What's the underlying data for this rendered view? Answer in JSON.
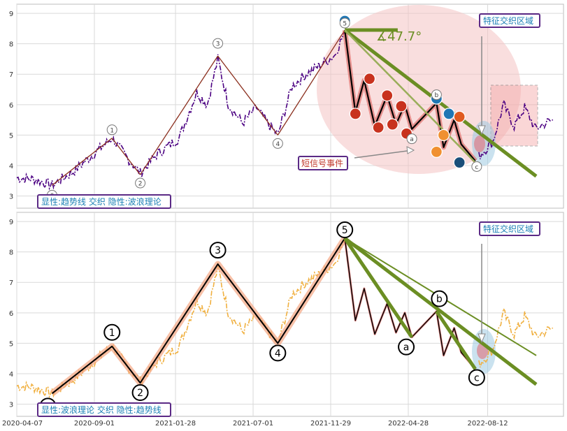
{
  "chart_data": [
    {
      "type": "line",
      "panel": "top",
      "y_ticks": [
        "3",
        "4",
        "5",
        "6",
        "7",
        "8",
        "9"
      ],
      "ylim": [
        2.6,
        9.3
      ],
      "x_tick_labels": [
        "2020-04-07",
        "2020-09-01",
        "2021-01-28",
        "2021-07-01",
        "2021-11-29",
        "2022-04-28",
        "2022-08-12"
      ],
      "legend_box": "显性:趋势线 交织 隐性:波浪理论",
      "feature_label": "特征交织区域",
      "note_label": "短信号事件",
      "angle_label": "∡47.7°",
      "wave_labels": [
        "0",
        "1",
        "2",
        "3",
        "4",
        "5",
        "a",
        "b",
        "c"
      ],
      "pivots": [
        {
          "label": "0",
          "x": 0.0,
          "y": 3.35
        },
        {
          "label": "1",
          "x": 0.17,
          "y": 4.9
        },
        {
          "label": "2",
          "x": 0.25,
          "y": 3.7
        },
        {
          "label": "3",
          "x": 0.47,
          "y": 7.6
        },
        {
          "label": "4",
          "x": 0.64,
          "y": 5.0
        },
        {
          "label": "5",
          "x": 0.83,
          "y": 8.45
        },
        {
          "label": "a",
          "x": 1.02,
          "y": 5.2
        },
        {
          "label": "b",
          "x": 1.09,
          "y": 6.05
        },
        {
          "label": "c",
          "x": 1.2,
          "y": 4.15
        }
      ],
      "grid": true,
      "legend_placement": "bottom-left"
    },
    {
      "type": "line",
      "panel": "bottom",
      "y_ticks": [
        "3",
        "4",
        "5",
        "6",
        "7",
        "8",
        "9"
      ],
      "ylim": [
        2.6,
        9.3
      ],
      "legend_box": "显性:波浪理论 交织 隐性:趋势线",
      "feature_label": "特征交织区域",
      "wave_labels": [
        "0",
        "1",
        "2",
        "3",
        "4",
        "5",
        "a",
        "b",
        "c"
      ],
      "grid": true,
      "legend_placement": "bottom-left"
    }
  ],
  "colors": {
    "price_top": "#4b0082",
    "price_bottom": "#f0b040",
    "trend": "#6b8e23",
    "wave": "#000000",
    "wave_glow": "#f4a582",
    "ellipse": "#f4c2c2",
    "accent_blue": "#1a7fb5"
  }
}
